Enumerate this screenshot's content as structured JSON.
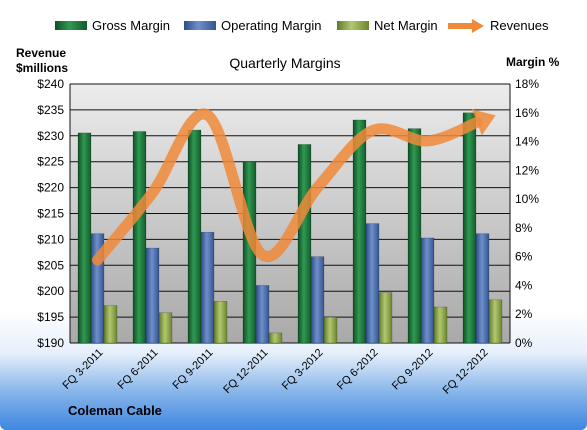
{
  "chart_data": {
    "type": "bar",
    "title": "Quarterly Margins",
    "left_axis_title_line1": "Revenue",
    "left_axis_title_line2": "$millions",
    "right_axis_title": "Margin %",
    "footer_label": "Coleman Cable",
    "categories": [
      "FQ 3-2011",
      "FQ 6-2011",
      "FQ 9-2011",
      "FQ 12-2011",
      "FQ 3-2012",
      "FQ 6-2012",
      "FQ 9-2012",
      "FQ 12-2012"
    ],
    "ylim_left": [
      190,
      240
    ],
    "yticks_left": [
      "$190",
      "$195",
      "$200",
      "$205",
      "$210",
      "$215",
      "$220",
      "$225",
      "$230",
      "$235",
      "$240"
    ],
    "ylim_right": [
      0,
      18
    ],
    "yticks_right": [
      "0%",
      "2%",
      "4%",
      "6%",
      "8%",
      "10%",
      "12%",
      "14%",
      "16%",
      "18%"
    ],
    "series": [
      {
        "name": "Gross Margin",
        "kind": "bar",
        "axis": "right",
        "color": "#1e7a3c",
        "values": [
          14.6,
          14.7,
          14.8,
          12.6,
          13.8,
          15.5,
          14.9,
          16.0
        ]
      },
      {
        "name": "Operating Margin",
        "kind": "bar",
        "axis": "right",
        "color": "#4a6fae",
        "values": [
          7.6,
          6.6,
          7.7,
          4.0,
          6.0,
          8.3,
          7.3,
          7.6
        ]
      },
      {
        "name": "Net Margin",
        "kind": "bar",
        "axis": "right",
        "color": "#8aa84a",
        "values": [
          2.6,
          2.1,
          2.9,
          0.7,
          1.8,
          3.5,
          2.5,
          3.0
        ]
      },
      {
        "name": "Revenues",
        "kind": "line",
        "axis": "left",
        "color": "#f08a3a",
        "values": [
          206,
          219,
          234,
          207,
          220,
          231,
          229,
          233
        ]
      }
    ],
    "grid": true,
    "legend_position": "top"
  }
}
